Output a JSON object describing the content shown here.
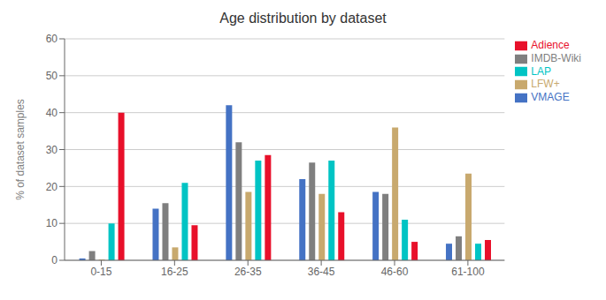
{
  "chart_data": {
    "type": "bar",
    "title": "Age distribution by dataset",
    "ylabel": "% of dataset samples",
    "categories": [
      "0-15",
      "16-25",
      "26-35",
      "36-45",
      "46-60",
      "61-100"
    ],
    "series": [
      {
        "name": "VMAGE",
        "color": "#4472c4",
        "values": [
          0.5,
          14,
          42,
          22,
          18.5,
          4.5
        ]
      },
      {
        "name": "IMDB-Wiki",
        "color": "#7f7f7f",
        "values": [
          2.5,
          15.5,
          32,
          26.5,
          18,
          6.5
        ]
      },
      {
        "name": "LFW+",
        "color": "#c8a96e",
        "values": [
          0.2,
          3.5,
          18.5,
          18,
          36,
          23.5
        ]
      },
      {
        "name": "LAP",
        "color": "#00c4c4",
        "values": [
          10,
          21,
          27,
          27,
          11,
          4.5
        ]
      },
      {
        "name": "Adience",
        "color": "#e8102a",
        "values": [
          40,
          9.5,
          28.5,
          13,
          5,
          5.5
        ]
      }
    ],
    "ylim": [
      0,
      60
    ],
    "yticks": [
      0,
      10,
      20,
      30,
      40,
      50,
      60
    ],
    "grid": true,
    "legend": "upper right"
  }
}
